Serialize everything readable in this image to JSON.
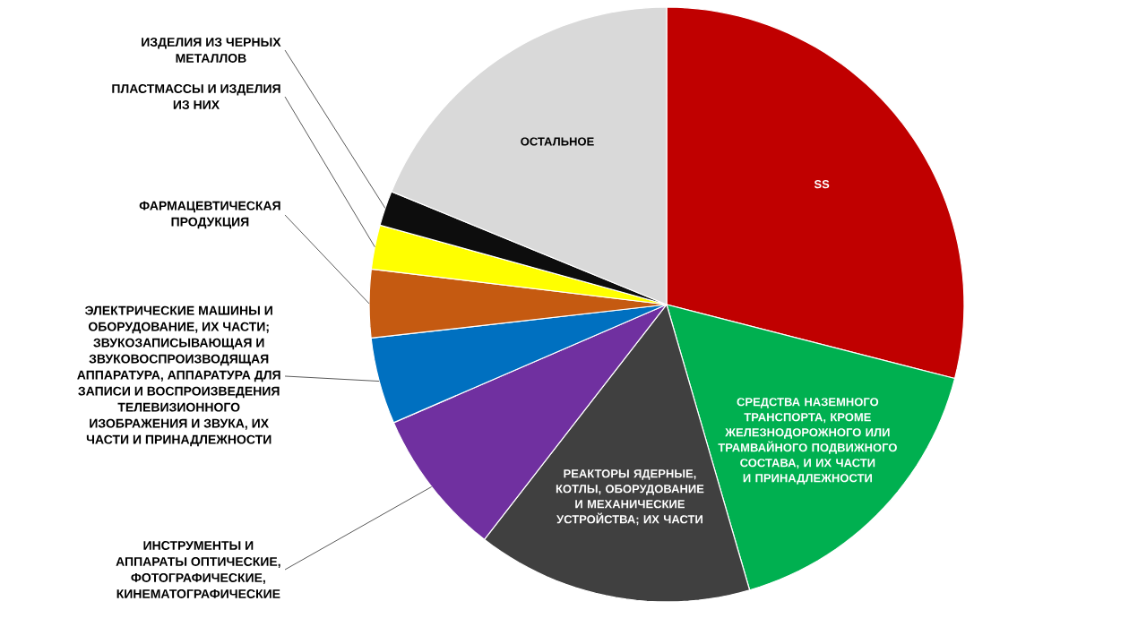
{
  "chart_data": {
    "type": "pie",
    "categories": [
      "SS",
      "СРЕДСТВА НАЗЕМНОГО ТРАНСПОРТА, КРОМЕ ЖЕЛЕЗНОДОРОЖНОГО ИЛИ ТРАМВАЙНОГО ПОДВИЖНОГО СОСТАВА, И ИХ ЧАСТИ И ПРИНАДЛЕЖНОСТИ",
      "РЕАКТОРЫ ЯДЕРНЫЕ, КОТЛЫ, ОБОРУДОВАНИЕ И МЕХАНИЧЕСКИЕ УСТРОЙСТВА; ИХ ЧАСТИ",
      "ИНСТРУМЕНТЫ И АППАРАТЫ ОПТИЧЕСКИЕ, ФОТОГРАФИЧЕСКИЕ, КИНЕМАТОГРАФИЧЕСКИЕ",
      "ЭЛЕКТРИЧЕСКИЕ МАШИНЫ И ОБОРУДОВАНИЕ, ИХ ЧАСТИ; ЗВУКОЗАПИСЫВАЮЩАЯ И ЗВУКОВОСПРОИЗВОДЯЩАЯ АППАРАТУРА, АППАРАТУРА ДЛЯ ЗАПИСИ И ВОСПРОИЗВЕДЕНИЯ ТЕЛЕВИЗИОННОГО ИЗОБРАЖЕНИЯ И ЗВУКА, ИХ ЧАСТИ И ПРИНАДЛЕЖНОСТИ",
      "ФАРМАЦЕВТИЧЕСКАЯ ПРОДУКЦИЯ",
      "ПЛАСТМАССЫ И ИЗДЕЛИЯ ИЗ НИХ",
      "ИЗДЕЛИЯ ИЗ ЧЕРНЫХ МЕТАЛЛОВ",
      "ОСТАЛЬНОЕ"
    ],
    "values": [
      29,
      16.5,
      15,
      8,
      4.7,
      3.7,
      2.4,
      1.9,
      18.8
    ],
    "colors": [
      "#c00000",
      "#00b050",
      "#404040",
      "#7030a0",
      "#0070c0",
      "#c55a11",
      "#ffff00",
      "#0d0d0d",
      "#d9d9d9"
    ]
  }
}
